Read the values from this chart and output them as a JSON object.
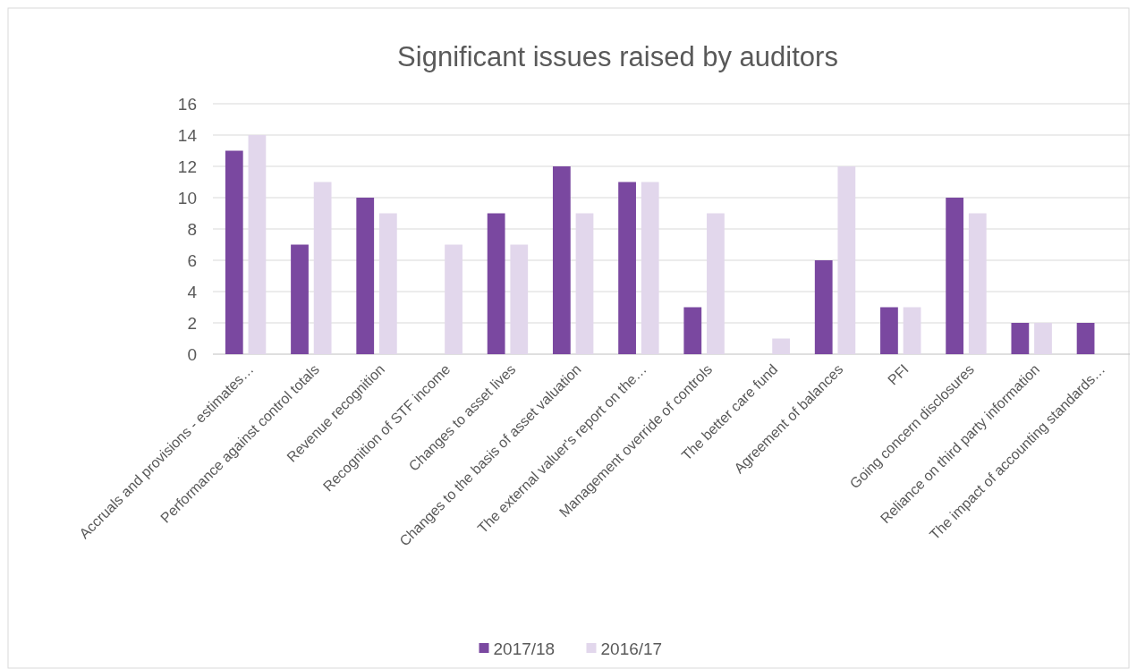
{
  "chart_data": {
    "type": "bar",
    "title": "Significant issues raised by auditors",
    "categories": [
      "Accruals and provisions - estimates…",
      "Performance against control totals",
      "Revenue recognition",
      "Recognition of STF income",
      "Changes to asset lives",
      "Changes to the basis of asset valuation",
      "The external valuer's report on the…",
      "Management override of controls",
      "The better care fund",
      "Agreement of balances",
      "PFI",
      "Going concern disclosures",
      "Reliance on third party information",
      "The impact of accounting standards…"
    ],
    "series": [
      {
        "name": "2017/18",
        "color": "#7a48a0",
        "values": [
          13,
          7,
          10,
          0,
          9,
          12,
          11,
          3,
          0,
          6,
          3,
          10,
          2,
          2
        ]
      },
      {
        "name": "2016/17",
        "color": "#e2d7ec",
        "values": [
          14,
          11,
          9,
          7,
          7,
          9,
          11,
          9,
          1,
          12,
          3,
          9,
          2,
          0
        ]
      }
    ],
    "ylim": [
      0,
      16
    ],
    "yticks": [
      0,
      2,
      4,
      6,
      8,
      10,
      12,
      14,
      16
    ],
    "grid": "y",
    "legend": "bottom"
  }
}
